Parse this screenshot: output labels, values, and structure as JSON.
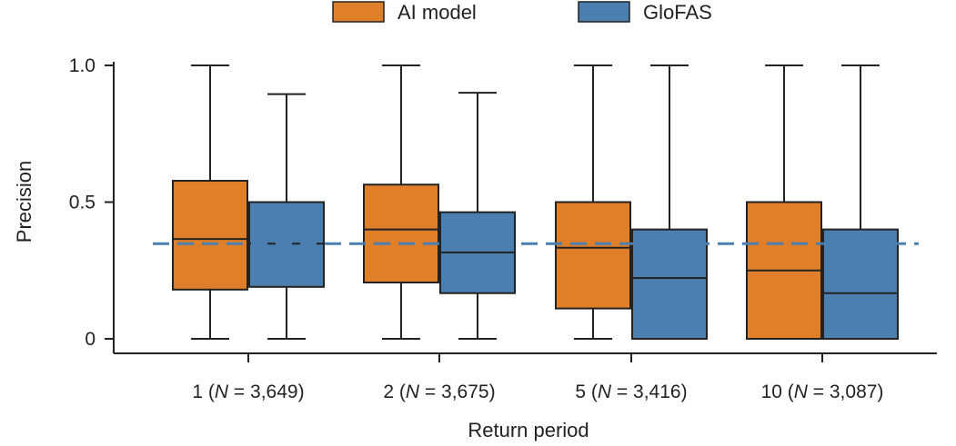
{
  "chart_data": {
    "type": "box",
    "xlabel": "Return period",
    "ylabel": "Precision",
    "ylim": [
      0,
      1.0
    ],
    "yticks": [
      {
        "value": 0,
        "label": "0"
      },
      {
        "value": 0.5,
        "label": "0.5"
      },
      {
        "value": 1.0,
        "label": "1.0"
      }
    ],
    "categories": [
      {
        "label": "1 (N = 3,649)",
        "prefix": "1 (",
        "italic": "N",
        "suffix": " = 3,649)"
      },
      {
        "label": "2 (N = 3,675)",
        "prefix": "2 (",
        "italic": "N",
        "suffix": " = 3,675)"
      },
      {
        "label": "5 (N = 3,416)",
        "prefix": "5 (",
        "italic": "N",
        "suffix": " = 3,416)"
      },
      {
        "label": "10 (N = 3,087)",
        "prefix": "10 (",
        "italic": "N",
        "suffix": " = 3,087)"
      }
    ],
    "series": [
      {
        "name": "AI model",
        "color": "#e07f2a",
        "boxes": [
          {
            "min": 0,
            "q1": 0.18,
            "median": 0.365,
            "q3": 0.578,
            "max": 1.0
          },
          {
            "min": 0,
            "q1": 0.206,
            "median": 0.4,
            "q3": 0.564,
            "max": 1.0
          },
          {
            "min": 0,
            "q1": 0.111,
            "median": 0.333,
            "q3": 0.5,
            "max": 1.0
          },
          {
            "min": 0,
            "q1": 0.0,
            "median": 0.25,
            "q3": 0.5,
            "max": 1.0
          }
        ]
      },
      {
        "name": "GloFAS",
        "color": "#4a7fb0",
        "boxes": [
          {
            "min": 0,
            "q1": 0.19,
            "median": 0.348,
            "q3": 0.5,
            "max": 0.895
          },
          {
            "min": 0,
            "q1": 0.167,
            "median": 0.316,
            "q3": 0.463,
            "max": 0.9
          },
          {
            "min": 0,
            "q1": 0.0,
            "median": 0.222,
            "q3": 0.4,
            "max": 1.0
          },
          {
            "min": 0,
            "q1": 0.0,
            "median": 0.167,
            "q3": 0.4,
            "max": 1.0
          }
        ]
      }
    ],
    "reference_line": {
      "value": 0.348,
      "color": "#4a7fb0",
      "style": "dashed"
    },
    "legend": {
      "position": "top-center"
    },
    "grid": false
  }
}
